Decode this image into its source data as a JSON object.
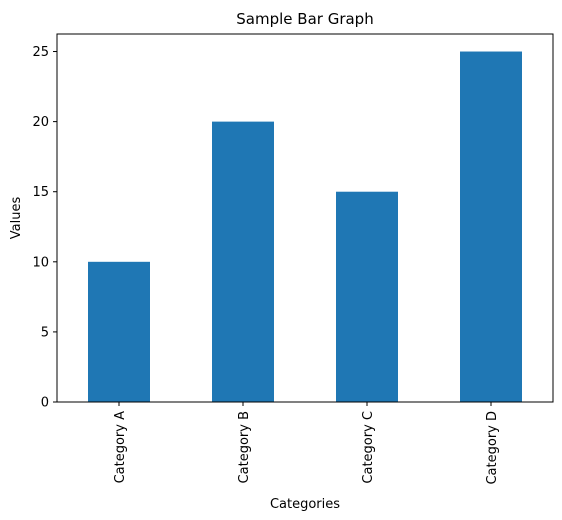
{
  "chart_data": {
    "type": "bar",
    "title": "Sample Bar Graph",
    "xlabel": "Categories",
    "ylabel": "Values",
    "categories": [
      "Category A",
      "Category B",
      "Category C",
      "Category D"
    ],
    "values": [
      10,
      20,
      15,
      25
    ],
    "ylim": [
      0,
      26.25
    ],
    "yticks": [
      "0",
      "5",
      "10",
      "15",
      "20",
      "25"
    ],
    "bar_color": "#1f77b4",
    "grid": false,
    "legend": "none"
  }
}
